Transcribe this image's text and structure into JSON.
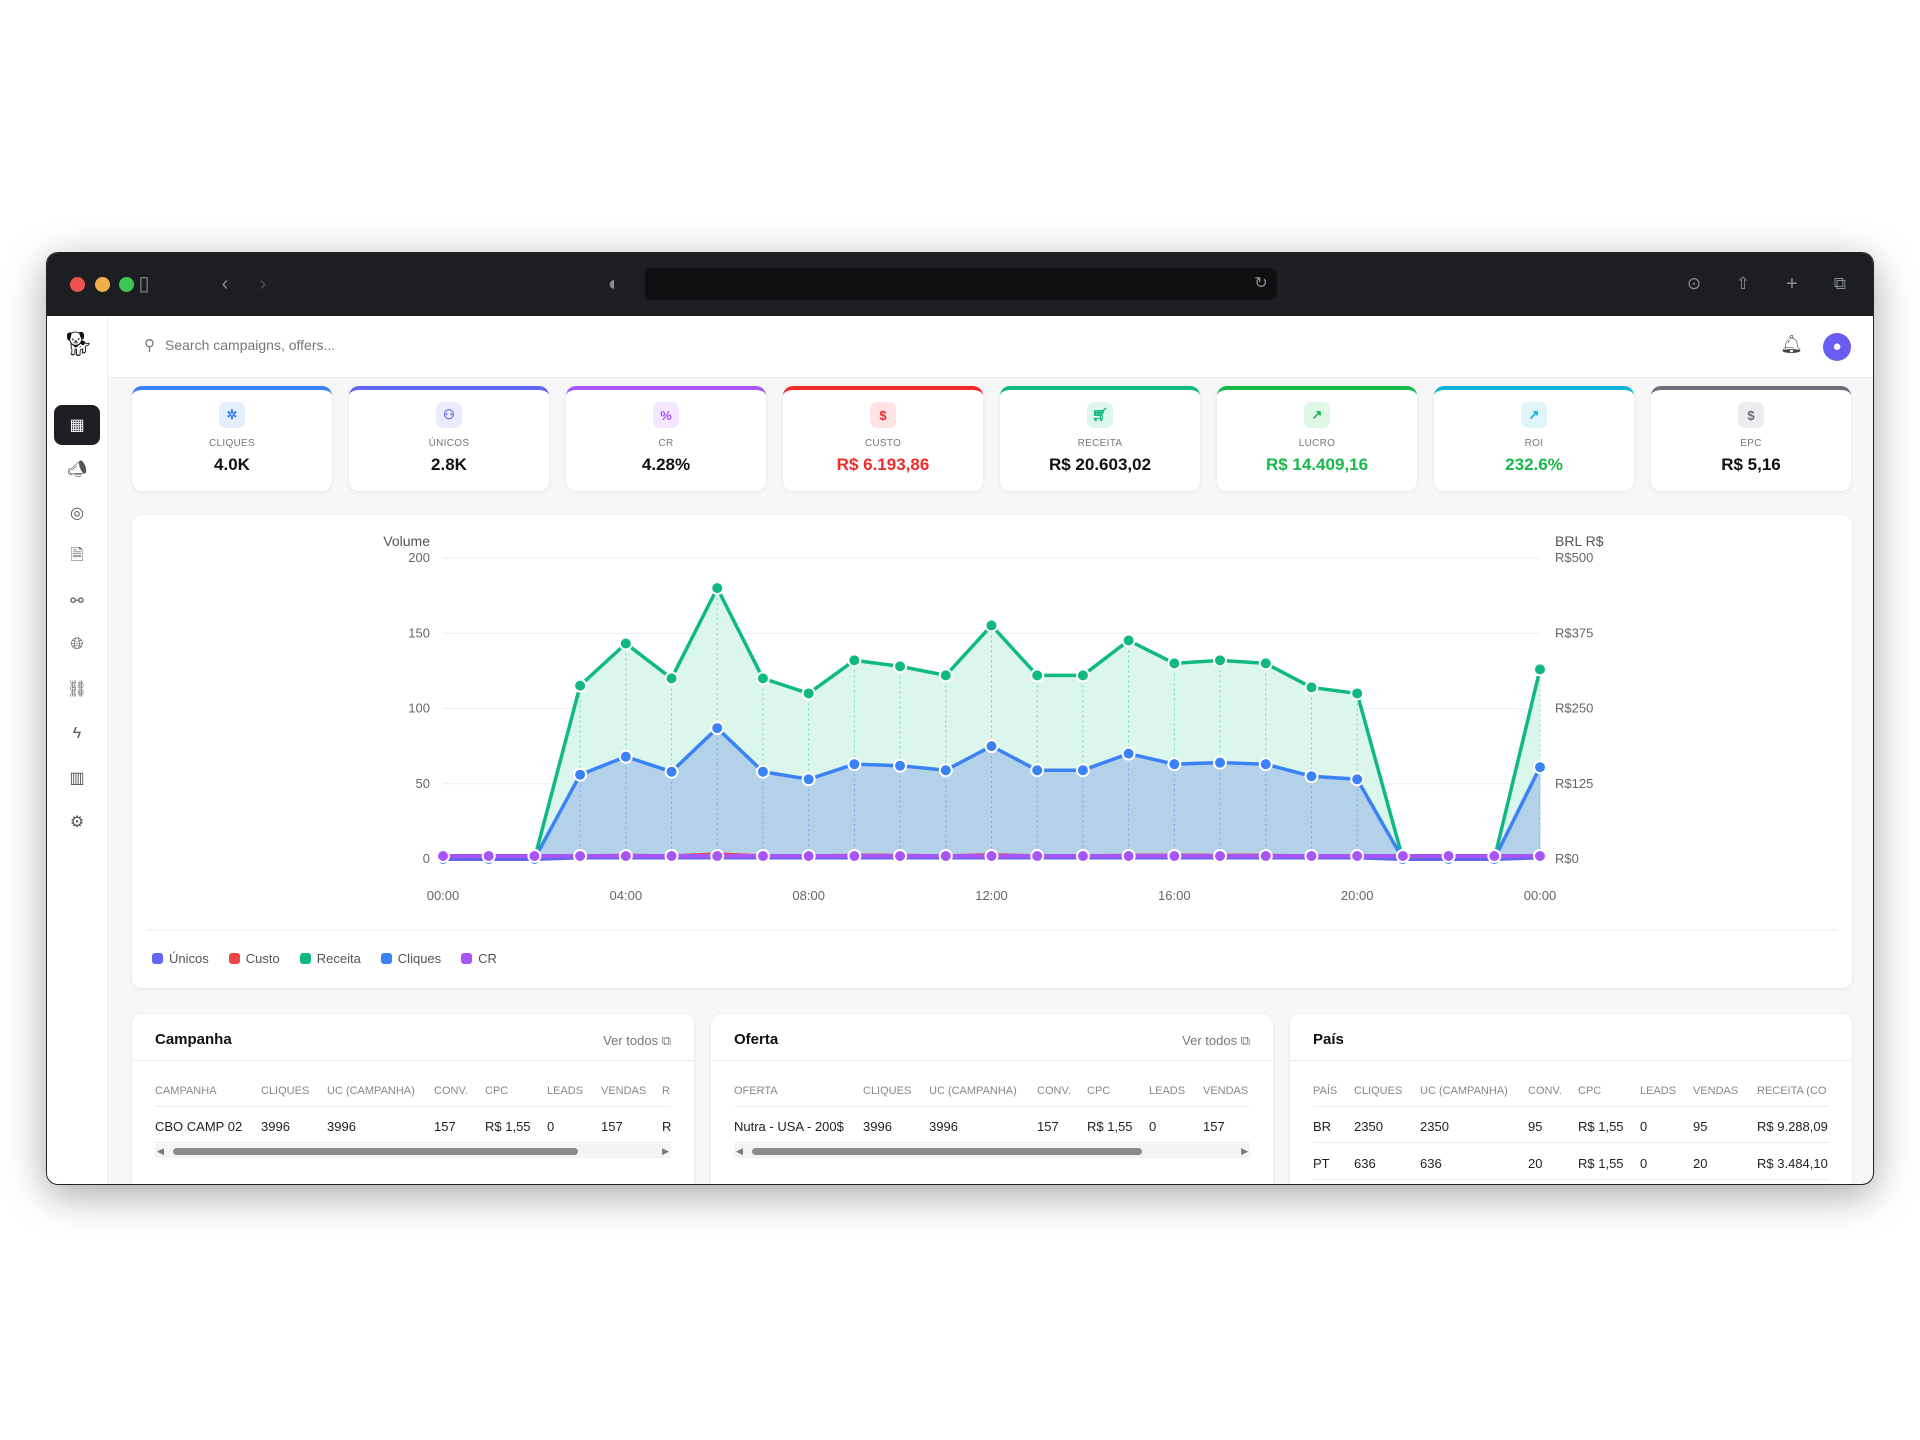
{
  "browser": {
    "icons": [
      "sidebar-toggle-icon",
      "back-icon",
      "forward-icon",
      "shield-icon",
      "reload-icon",
      "download-icon",
      "share-icon",
      "new-tab-icon",
      "tabs-icon"
    ]
  },
  "header": {
    "search_placeholder": "Search campaigns, offers..."
  },
  "sidebar": {
    "items": [
      "dashboard",
      "campaigns",
      "targets",
      "offers",
      "networks",
      "countries",
      "links",
      "automations",
      "reports",
      "settings"
    ],
    "active": "dashboard"
  },
  "kpis": [
    {
      "label": "CLIQUES",
      "value": "4.0K",
      "color": "#3b82f6",
      "icon": "pointer-click-icon",
      "glyph": "✲",
      "value_color": "#111111"
    },
    {
      "label": "ÚNICOS",
      "value": "2.8K",
      "color": "#6366f1",
      "icon": "users-icon",
      "glyph": "⚇",
      "value_color": "#111111"
    },
    {
      "label": "CR",
      "value": "4.28%",
      "color": "#a855f7",
      "icon": "percent-icon",
      "glyph": "%",
      "value_color": "#111111"
    },
    {
      "label": "CUSTO",
      "value": "R$ 6.193,86",
      "color": "#ef2b2b",
      "icon": "dollar-icon",
      "glyph": "$",
      "value_color": "#ef2b2b"
    },
    {
      "label": "RECEITA",
      "value": "R$ 20.603,02",
      "color": "#10b981",
      "icon": "cart-icon",
      "glyph": "🛒︎",
      "value_color": "#111111"
    },
    {
      "label": "LUCRO",
      "value": "R$ 14.409,16",
      "color": "#16b94a",
      "icon": "trending-up-icon",
      "glyph": "↗",
      "value_color": "#16b94a"
    },
    {
      "label": "ROI",
      "value": "232.6%",
      "color": "#0fb5d8",
      "icon": "arrow-up-right-icon",
      "glyph": "↗",
      "value_color": "#16b94a"
    },
    {
      "label": "EPC",
      "value": "R$ 5,16",
      "color": "#6b6e76",
      "icon": "dollar-icon",
      "glyph": "$",
      "value_color": "#111111"
    }
  ],
  "chart_data": {
    "type": "area",
    "ylabel": "Volume",
    "y2label": "BRL R$",
    "ylim": [
      0,
      200
    ],
    "y2lim": [
      0,
      500
    ],
    "yticks": [
      "0",
      "50",
      "100",
      "150",
      "200"
    ],
    "y2ticks": [
      "R$0",
      "R$125",
      "R$250",
      "R$375",
      "R$500"
    ],
    "x": [
      "00:00",
      "01:00",
      "02:00",
      "03:00",
      "04:00",
      "05:00",
      "06:00",
      "07:00",
      "08:00",
      "09:00",
      "10:00",
      "11:00",
      "12:00",
      "13:00",
      "14:00",
      "15:00",
      "16:00",
      "17:00",
      "18:00",
      "19:00",
      "20:00",
      "21:00",
      "22:00",
      "23:00",
      "00:00"
    ],
    "xticks": [
      "00:00",
      "04:00",
      "08:00",
      "12:00",
      "16:00",
      "20:00",
      "00:00"
    ],
    "grid": true,
    "legend_position": "bottom-left",
    "series": [
      {
        "name": "Únicos",
        "color": "#6366f1",
        "axis": "left",
        "values": [
          0,
          0,
          0,
          1,
          1,
          1,
          1,
          1,
          1,
          1,
          1,
          1,
          1,
          1,
          1,
          1,
          1,
          1,
          1,
          1,
          1,
          0,
          0,
          0,
          1
        ]
      },
      {
        "name": "Custo",
        "color": "#ef4444",
        "axis": "right",
        "values": [
          0,
          0,
          0,
          5,
          6,
          5,
          8,
          5,
          5,
          6,
          6,
          5,
          7,
          5,
          5,
          6,
          6,
          6,
          6,
          5,
          5,
          0,
          0,
          0,
          5
        ]
      },
      {
        "name": "Receita",
        "color": "#10b981",
        "axis": "right",
        "values": [
          0,
          0,
          0,
          288,
          358,
          300,
          450,
          300,
          275,
          330,
          320,
          305,
          388,
          305,
          305,
          363,
          325,
          330,
          325,
          285,
          275,
          0,
          0,
          0,
          315
        ]
      },
      {
        "name": "Cliques",
        "color": "#3b82f6",
        "axis": "left",
        "values": [
          0,
          0,
          0,
          56,
          68,
          58,
          87,
          58,
          53,
          63,
          62,
          59,
          75,
          59,
          59,
          70,
          63,
          64,
          63,
          55,
          53,
          0,
          0,
          0,
          61
        ]
      },
      {
        "name": "CR",
        "color": "#a855f7",
        "axis": "left",
        "values": [
          2,
          2,
          2,
          2,
          2,
          2,
          2,
          2,
          2,
          2,
          2,
          2,
          2,
          2,
          2,
          2,
          2,
          2,
          2,
          2,
          2,
          2,
          2,
          2,
          2
        ]
      }
    ]
  },
  "tables": [
    {
      "title": "Campanha",
      "link": "Ver todos",
      "columns": [
        "CAMPANHA",
        "CLIQUES",
        "UC (CAMPANHA)",
        "CONV.",
        "CPC",
        "LEADS",
        "VENDAS",
        "R"
      ],
      "rows": [
        [
          "CBO CAMP 02",
          "3996",
          "3996",
          "157",
          "R$ 1,55",
          "0",
          "157",
          "R"
        ]
      ]
    },
    {
      "title": "Oferta",
      "link": "Ver todos",
      "columns": [
        "OFERTA",
        "CLIQUES",
        "UC (CAMPANHA)",
        "CONV.",
        "CPC",
        "LEADS",
        "VENDAS"
      ],
      "rows": [
        [
          "Nutra - USA - 200$",
          "3996",
          "3996",
          "157",
          "R$ 1,55",
          "0",
          "157"
        ]
      ]
    },
    {
      "title": "País",
      "columns": [
        "PAÍS",
        "CLIQUES",
        "UC (CAMPANHA)",
        "CONV.",
        "CPC",
        "LEADS",
        "VENDAS",
        "RECEITA (CO"
      ],
      "rows": [
        [
          "BR",
          "2350",
          "2350",
          "95",
          "R$ 1,55",
          "0",
          "95",
          "R$ 9.288,09"
        ],
        [
          "PT",
          "636",
          "636",
          "20",
          "R$ 1,55",
          "0",
          "20",
          "R$ 3.484,10"
        ]
      ]
    }
  ]
}
